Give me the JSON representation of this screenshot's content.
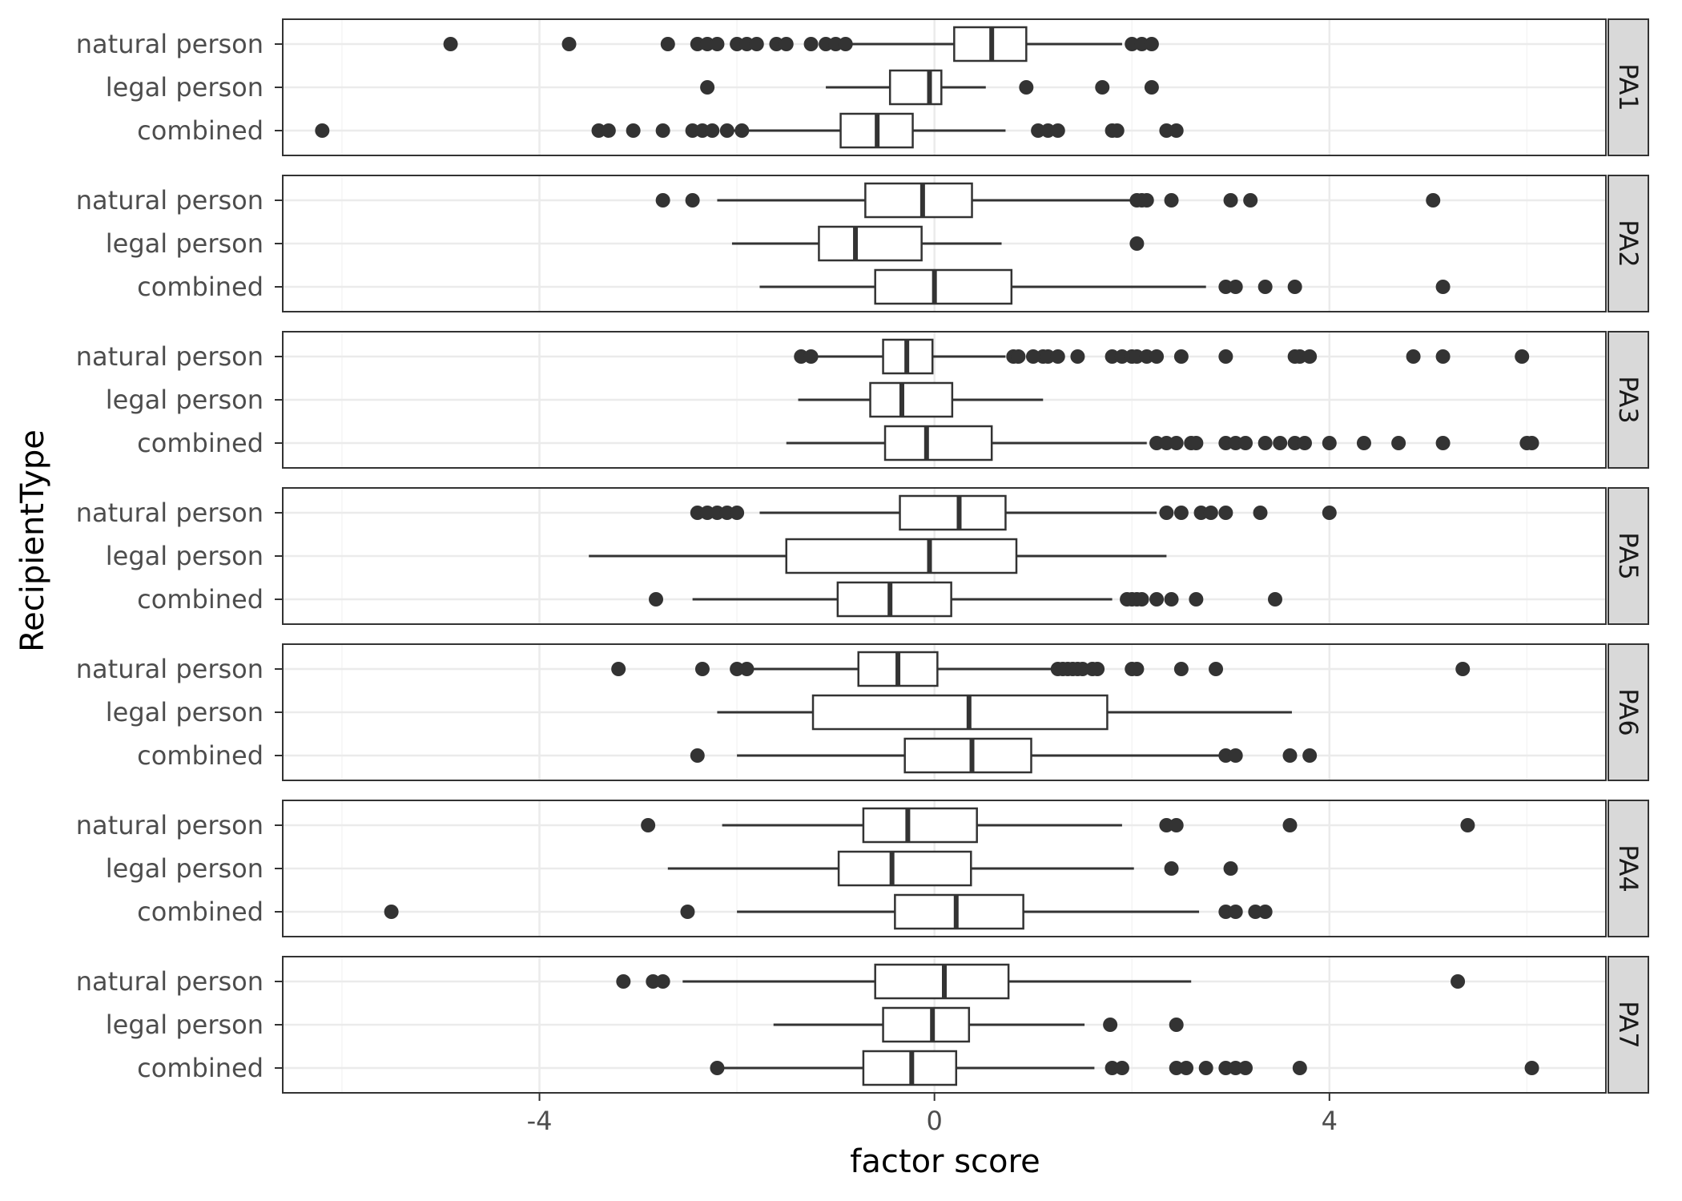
{
  "chart_data": {
    "type": "boxplot",
    "orientation": "horizontal",
    "xlabel": "factor score",
    "ylabel": "RecipientType",
    "xlim": [
      -6.6,
      6.8
    ],
    "x_ticks": [
      -4,
      0,
      4
    ],
    "x_tick_labels": [
      "-4",
      "0",
      "4"
    ],
    "grid": true,
    "facet_strip_position": "right",
    "categories": [
      "natural person",
      "legal person",
      "combined"
    ],
    "colors": {
      "box_stroke": "#333333",
      "point_fill": "#333333",
      "panel_border": "#333333",
      "strip_fill": "#d9d9d9",
      "grid_major": "#ebebeb",
      "grid_minor": "#f5f5f5"
    },
    "panels": [
      {
        "label": "PA1",
        "rows": [
          {
            "category": "natural person",
            "whisker_low": -0.85,
            "q1": 0.2,
            "median": 0.58,
            "q3": 0.93,
            "whisker_high": 1.9,
            "outliers": [
              -4.9,
              -3.7,
              -2.7,
              -2.4,
              -2.3,
              -2.2,
              -2.0,
              -1.9,
              -1.8,
              -1.6,
              -1.5,
              -1.25,
              -1.1,
              -1.0,
              -0.9,
              2.0,
              2.1,
              2.2
            ]
          },
          {
            "category": "legal person",
            "whisker_low": -1.1,
            "q1": -0.45,
            "median": -0.05,
            "q3": 0.07,
            "whisker_high": 0.52,
            "outliers": [
              -2.3,
              0.93,
              1.7,
              2.2
            ]
          },
          {
            "category": "combined",
            "whisker_low": -2.05,
            "q1": -0.95,
            "median": -0.58,
            "q3": -0.22,
            "whisker_high": 0.72,
            "outliers": [
              -6.2,
              -3.4,
              -3.3,
              -3.05,
              -2.75,
              -2.45,
              -2.35,
              -2.25,
              -2.1,
              -1.95,
              1.05,
              1.15,
              1.25,
              1.8,
              1.85,
              2.35,
              2.45
            ]
          }
        ]
      },
      {
        "label": "PA2",
        "rows": [
          {
            "category": "natural person",
            "whisker_low": -2.2,
            "q1": -0.7,
            "median": -0.12,
            "q3": 0.38,
            "whisker_high": 2.0,
            "outliers": [
              -2.75,
              -2.45,
              2.05,
              2.1,
              2.15,
              2.4,
              3.0,
              3.2,
              5.05
            ]
          },
          {
            "category": "legal person",
            "whisker_low": -2.05,
            "q1": -1.17,
            "median": -0.8,
            "q3": -0.13,
            "whisker_high": 0.68,
            "outliers": [
              2.05
            ]
          },
          {
            "category": "combined",
            "whisker_low": -1.77,
            "q1": -0.6,
            "median": 0.0,
            "q3": 0.78,
            "whisker_high": 2.75,
            "outliers": [
              2.95,
              3.05,
              3.35,
              3.65,
              5.15
            ]
          }
        ]
      },
      {
        "label": "PA3",
        "rows": [
          {
            "category": "natural person",
            "whisker_low": -1.2,
            "q1": -0.52,
            "median": -0.28,
            "q3": -0.02,
            "whisker_high": 0.72,
            "outliers": [
              -1.35,
              -1.25,
              0.8,
              0.85,
              1.0,
              1.1,
              1.15,
              1.25,
              1.45,
              1.8,
              1.9,
              2.0,
              2.05,
              2.15,
              2.25,
              2.5,
              2.95,
              3.65,
              3.7,
              3.8,
              4.85,
              5.15,
              5.95
            ]
          },
          {
            "category": "legal person",
            "whisker_low": -1.38,
            "q1": -0.65,
            "median": -0.33,
            "q3": 0.18,
            "whisker_high": 1.1,
            "outliers": []
          },
          {
            "category": "combined",
            "whisker_low": -1.5,
            "q1": -0.5,
            "median": -0.08,
            "q3": 0.58,
            "whisker_high": 2.15,
            "outliers": [
              2.25,
              2.35,
              2.45,
              2.6,
              2.65,
              2.95,
              3.05,
              3.15,
              3.35,
              3.5,
              3.65,
              3.75,
              4.0,
              4.35,
              4.7,
              5.15,
              6.0,
              6.05
            ]
          }
        ]
      },
      {
        "label": "PA5",
        "rows": [
          {
            "category": "natural person",
            "whisker_low": -1.77,
            "q1": -0.35,
            "median": 0.25,
            "q3": 0.72,
            "whisker_high": 2.25,
            "outliers": [
              -2.4,
              -2.3,
              -2.2,
              -2.1,
              -2.0,
              2.35,
              2.5,
              2.7,
              2.8,
              2.95,
              3.3,
              4.0
            ]
          },
          {
            "category": "legal person",
            "whisker_low": -3.5,
            "q1": -1.5,
            "median": -0.05,
            "q3": 0.83,
            "whisker_high": 2.35,
            "outliers": []
          },
          {
            "category": "combined",
            "whisker_low": -2.45,
            "q1": -0.98,
            "median": -0.45,
            "q3": 0.17,
            "whisker_high": 1.8,
            "outliers": [
              -2.82,
              1.95,
              2.0,
              2.05,
              2.1,
              2.25,
              2.4,
              2.65,
              3.45
            ]
          }
        ]
      },
      {
        "label": "PA6",
        "rows": [
          {
            "category": "natural person",
            "whisker_low": -1.85,
            "q1": -0.77,
            "median": -0.37,
            "q3": 0.03,
            "whisker_high": 1.2,
            "outliers": [
              -3.2,
              -2.35,
              -2.0,
              -1.9,
              1.25,
              1.3,
              1.35,
              1.4,
              1.45,
              1.5,
              1.6,
              1.65,
              2.0,
              2.05,
              2.5,
              2.85,
              5.35
            ]
          },
          {
            "category": "legal person",
            "whisker_low": -2.2,
            "q1": -1.23,
            "median": 0.35,
            "q3": 1.75,
            "whisker_high": 3.62,
            "outliers": []
          },
          {
            "category": "combined",
            "whisker_low": -2.0,
            "q1": -0.3,
            "median": 0.38,
            "q3": 0.98,
            "whisker_high": 2.95,
            "outliers": [
              -2.4,
              2.95,
              3.05,
              3.6,
              3.8
            ]
          }
        ]
      },
      {
        "label": "PA4",
        "rows": [
          {
            "category": "natural person",
            "whisker_low": -2.15,
            "q1": -0.72,
            "median": -0.27,
            "q3": 0.43,
            "whisker_high": 1.9,
            "outliers": [
              -2.9,
              2.35,
              2.45,
              3.6,
              5.4
            ]
          },
          {
            "category": "legal person",
            "whisker_low": -2.7,
            "q1": -0.97,
            "median": -0.43,
            "q3": 0.37,
            "whisker_high": 2.02,
            "outliers": [
              2.4,
              3.0
            ]
          },
          {
            "category": "combined",
            "whisker_low": -2.0,
            "q1": -0.4,
            "median": 0.22,
            "q3": 0.9,
            "whisker_high": 2.68,
            "outliers": [
              -5.5,
              -2.5,
              2.95,
              3.05,
              3.25,
              3.35
            ]
          }
        ]
      },
      {
        "label": "PA7",
        "rows": [
          {
            "category": "natural person",
            "whisker_low": -2.55,
            "q1": -0.6,
            "median": 0.1,
            "q3": 0.75,
            "whisker_high": 2.6,
            "outliers": [
              -3.15,
              -2.85,
              -2.75,
              5.3
            ]
          },
          {
            "category": "legal person",
            "whisker_low": -1.63,
            "q1": -0.52,
            "median": -0.02,
            "q3": 0.35,
            "whisker_high": 1.52,
            "outliers": [
              1.78,
              2.45
            ]
          },
          {
            "category": "combined",
            "whisker_low": -2.2,
            "q1": -0.72,
            "median": -0.23,
            "q3": 0.22,
            "whisker_high": 1.62,
            "outliers": [
              -2.2,
              1.8,
              1.9,
              2.45,
              2.55,
              2.75,
              2.95,
              3.05,
              3.15,
              3.7,
              6.05
            ]
          }
        ]
      }
    ]
  }
}
